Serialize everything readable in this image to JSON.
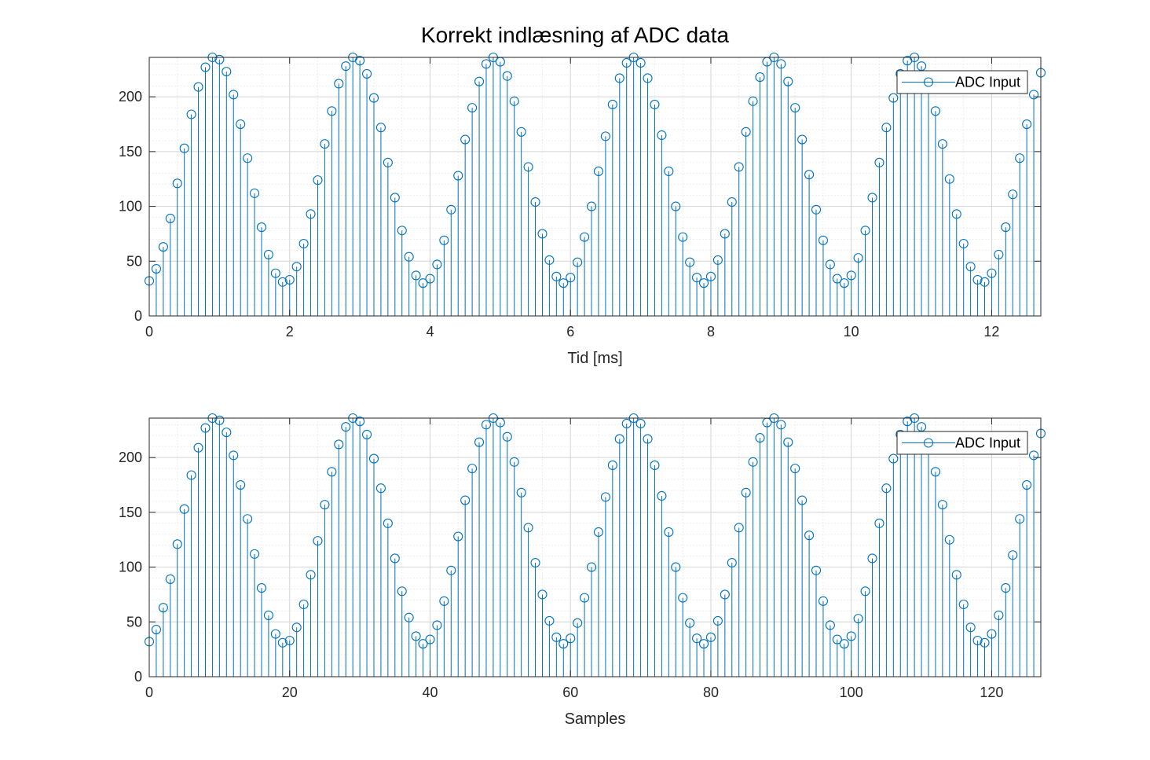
{
  "figure": {
    "title": "Korrekt indlæsning af ADC data",
    "colors": {
      "series": "#0072BD",
      "axis": "#262626",
      "grid_major": "#d4d4d4",
      "grid_minor": "#e8e8e8",
      "background": "#ffffff"
    }
  },
  "chart_data": [
    {
      "type": "stem",
      "title": "Korrekt indlæsning af ADC data",
      "xlabel": "Tid [ms]",
      "ylabel": "",
      "xlim": [
        0,
        12.7
      ],
      "ylim": [
        0,
        236
      ],
      "xticks": [
        0,
        2,
        4,
        6,
        8,
        10,
        12
      ],
      "yticks": [
        0,
        50,
        100,
        150,
        200
      ],
      "grid": true,
      "minor_grid": true,
      "legend": {
        "entries": [
          "ADC Input"
        ],
        "location": "top-right"
      },
      "x_start": 0,
      "x_step": 0.1,
      "series": [
        {
          "name": "ADC Input",
          "values": [
            32,
            43,
            63,
            89,
            121,
            153,
            184,
            209,
            227,
            236,
            234,
            223,
            202,
            175,
            144,
            112,
            81,
            56,
            39,
            31,
            33,
            45,
            66,
            93,
            124,
            157,
            187,
            212,
            228,
            236,
            233,
            221,
            199,
            172,
            140,
            108,
            78,
            54,
            37,
            30,
            34,
            47,
            69,
            97,
            128,
            161,
            190,
            214,
            230,
            236,
            232,
            219,
            196,
            168,
            136,
            104,
            75,
            51,
            36,
            30,
            35,
            49,
            72,
            100,
            132,
            164,
            193,
            217,
            231,
            236,
            231,
            217,
            193,
            165,
            132,
            100,
            72,
            49,
            35,
            30,
            36,
            51,
            75,
            104,
            136,
            168,
            196,
            218,
            232,
            236,
            230,
            214,
            190,
            161,
            129,
            97,
            69,
            47,
            34,
            30,
            37,
            53,
            78,
            108,
            140,
            172,
            199,
            221,
            233,
            236,
            228,
            211,
            187,
            157,
            125,
            93,
            66,
            45,
            33,
            31,
            39,
            56,
            81,
            111,
            144,
            175,
            202,
            222
          ]
        }
      ]
    },
    {
      "type": "stem",
      "title": "",
      "xlabel": "Samples",
      "ylabel": "",
      "xlim": [
        0,
        127
      ],
      "ylim": [
        0,
        236
      ],
      "xticks": [
        0,
        20,
        40,
        60,
        80,
        100,
        120
      ],
      "yticks": [
        0,
        50,
        100,
        150,
        200
      ],
      "grid": true,
      "minor_grid": true,
      "legend": {
        "entries": [
          "ADC Input"
        ],
        "location": "top-right"
      },
      "x_start": 0,
      "x_step": 1,
      "series": [
        {
          "name": "ADC Input",
          "values": [
            32,
            43,
            63,
            89,
            121,
            153,
            184,
            209,
            227,
            236,
            234,
            223,
            202,
            175,
            144,
            112,
            81,
            56,
            39,
            31,
            33,
            45,
            66,
            93,
            124,
            157,
            187,
            212,
            228,
            236,
            233,
            221,
            199,
            172,
            140,
            108,
            78,
            54,
            37,
            30,
            34,
            47,
            69,
            97,
            128,
            161,
            190,
            214,
            230,
            236,
            232,
            219,
            196,
            168,
            136,
            104,
            75,
            51,
            36,
            30,
            35,
            49,
            72,
            100,
            132,
            164,
            193,
            217,
            231,
            236,
            231,
            217,
            193,
            165,
            132,
            100,
            72,
            49,
            35,
            30,
            36,
            51,
            75,
            104,
            136,
            168,
            196,
            218,
            232,
            236,
            230,
            214,
            190,
            161,
            129,
            97,
            69,
            47,
            34,
            30,
            37,
            53,
            78,
            108,
            140,
            172,
            199,
            221,
            233,
            236,
            228,
            211,
            187,
            157,
            125,
            93,
            66,
            45,
            33,
            31,
            39,
            56,
            81,
            111,
            144,
            175,
            202,
            222
          ]
        }
      ]
    }
  ]
}
